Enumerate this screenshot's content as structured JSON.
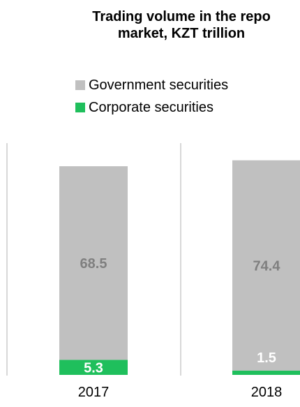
{
  "chart_data": {
    "type": "bar",
    "stacked": true,
    "title": "Trading volume in the repo market, KZT trillion",
    "categories": [
      "2017",
      "2018"
    ],
    "series": [
      {
        "name": "Corporate securities",
        "values": [
          5.3,
          1.5
        ],
        "color": "#1fbf5c"
      },
      {
        "name": "Government securities",
        "values": [
          68.5,
          74.4
        ],
        "color": "#c0c0c0"
      }
    ],
    "xlabel": "",
    "ylabel": "",
    "legend_placement": "top",
    "grid": false,
    "label_colors": {
      "on_government": "#7f7f7f",
      "on_corporate": "#ffffff"
    }
  },
  "legend": [
    {
      "label": "Government securities",
      "color": "#c0c0c0"
    },
    {
      "label": "Corporate securities",
      "color": "#1fbf5c"
    }
  ]
}
